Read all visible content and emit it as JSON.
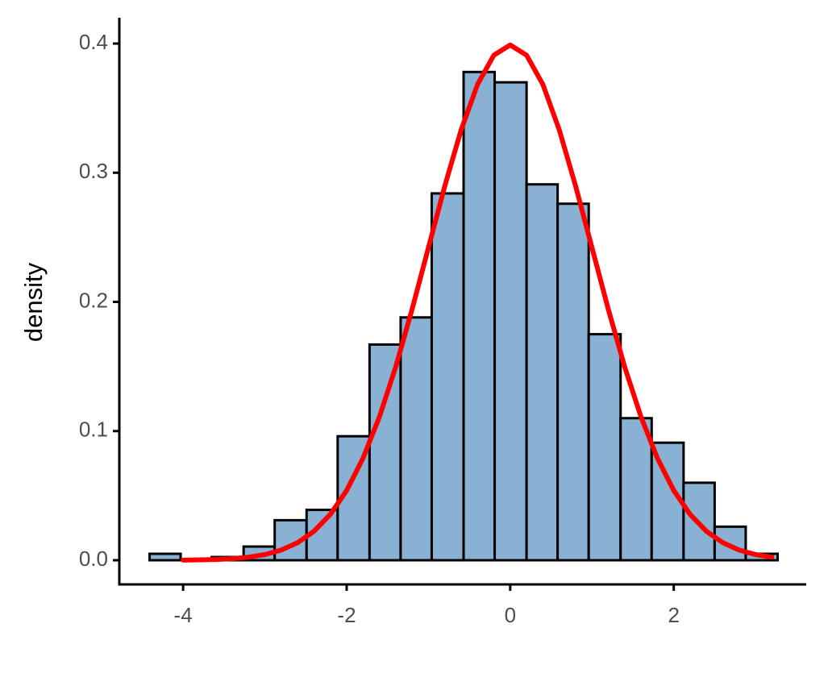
{
  "chart_data": {
    "type": "histogram",
    "ylabel": "density",
    "bins": [
      -4.41,
      -4.03,
      -3.65,
      -3.26,
      -2.88,
      -2.49,
      -2.11,
      -1.72,
      -1.34,
      -0.96,
      -0.57,
      -0.19,
      0.2,
      0.58,
      0.96,
      1.35,
      1.73,
      2.12,
      2.5,
      2.88,
      3.27
    ],
    "values": [
      0.005,
      0,
      0.0025,
      0.0106,
      0.031,
      0.039,
      0.096,
      0.167,
      0.188,
      0.284,
      0.378,
      0.37,
      0.291,
      0.276,
      0.175,
      0.11,
      0.091,
      0.06,
      0.026,
      0.005
    ],
    "color": "#89b1d4",
    "edgecolor": "#000000",
    "curve": {
      "color": "#ff0000",
      "x": [
        -4,
        -3.8,
        -3.6,
        -3.4,
        -3.2,
        -3,
        -2.8,
        -2.6,
        -2.4,
        -2.2,
        -2,
        -1.8,
        -1.6,
        -1.4,
        -1.2,
        -1,
        -0.8,
        -0.6,
        -0.4,
        -0.2,
        0,
        0.2,
        0.4,
        0.6,
        0.8,
        1,
        1.2,
        1.4,
        1.6,
        1.8,
        2,
        2.2,
        2.4,
        2.6,
        2.8,
        3,
        3.2
      ],
      "values": [
        0.0001,
        0.0003,
        0.0006,
        0.0012,
        0.0024,
        0.0044,
        0.0079,
        0.0136,
        0.0224,
        0.0355,
        0.054,
        0.079,
        0.1109,
        0.1497,
        0.1942,
        0.242,
        0.2897,
        0.3332,
        0.3683,
        0.391,
        0.3989,
        0.391,
        0.3683,
        0.3332,
        0.2897,
        0.242,
        0.1942,
        0.1497,
        0.1109,
        0.079,
        0.054,
        0.0355,
        0.0224,
        0.0136,
        0.0079,
        0.0044,
        0.0024
      ]
    },
    "xlim": [
      -4.78,
      3.62
    ],
    "ylim": [
      -0.0187,
      0.42
    ],
    "xticks": [
      -4,
      -2,
      0,
      2
    ],
    "yticks": [
      {
        "value": 0,
        "label": "0.0"
      },
      0.1,
      0.2,
      0.3,
      0.4
    ]
  }
}
